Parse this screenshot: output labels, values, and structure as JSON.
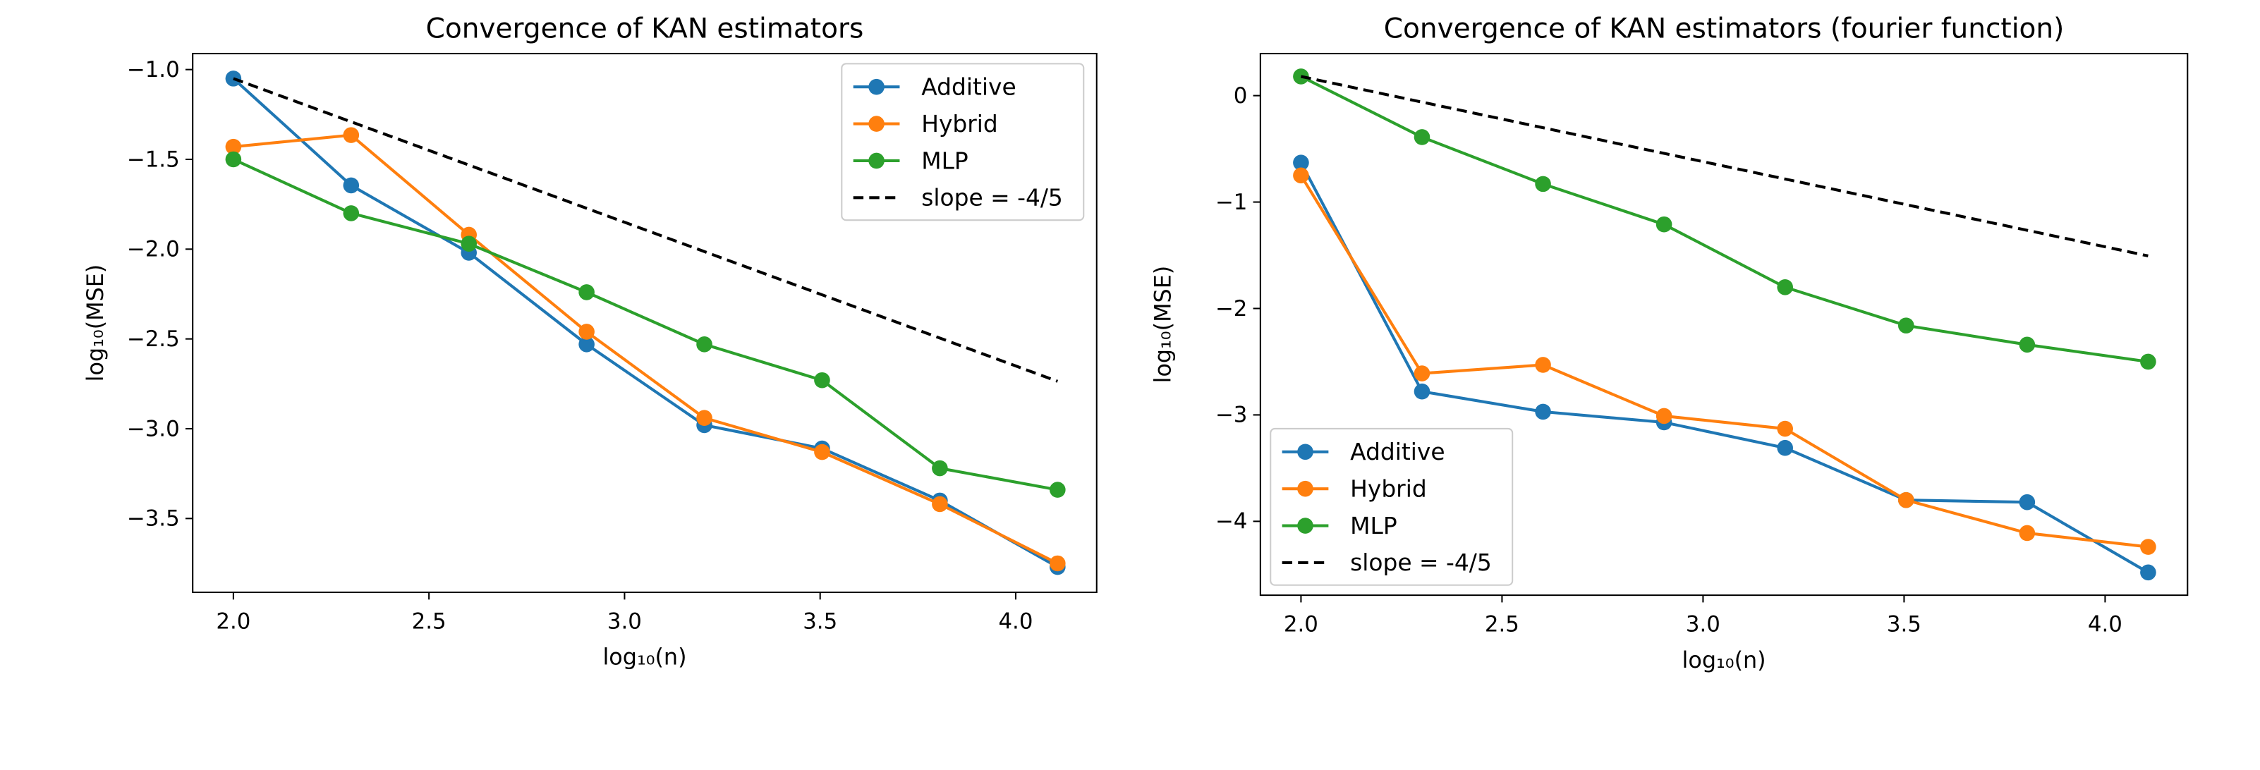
{
  "chart_data": [
    {
      "type": "line",
      "title": "Convergence of KAN estimators",
      "x_label": "log₁₀(n)",
      "y_label": "log₁₀(MSE)",
      "x": [
        2.0,
        2.301,
        2.602,
        2.903,
        3.204,
        3.505,
        3.806,
        4.107
      ],
      "series": [
        {
          "name": "Additive",
          "color": "#1f77b4",
          "values": [
            -1.05,
            -1.645,
            -2.02,
            -2.53,
            -2.98,
            -3.11,
            -3.4,
            -3.77
          ]
        },
        {
          "name": "Hybrid",
          "color": "#ff7f0e",
          "values": [
            -1.43,
            -1.365,
            -1.92,
            -2.46,
            -2.94,
            -3.13,
            -3.42,
            -3.75
          ]
        },
        {
          "name": "MLP",
          "color": "#2ca02c",
          "values": [
            -1.5,
            -1.8,
            -1.97,
            -2.24,
            -2.53,
            -2.73,
            -3.22,
            -3.34
          ]
        },
        {
          "name": "slope = -4/5",
          "color": "#000000",
          "dashed": true,
          "x": [
            2.0,
            4.107
          ],
          "values": [
            -1.05,
            -2.736
          ]
        }
      ],
      "xlim": [
        1.896,
        4.207
      ],
      "xticks": [
        {
          "value": 2,
          "label": "2.0"
        },
        {
          "value": 2.5,
          "label": "2.5"
        },
        {
          "value": 3,
          "label": "3.0"
        },
        {
          "value": 3.5,
          "label": "3.5"
        },
        {
          "value": 4,
          "label": "4.0"
        }
      ],
      "ylim": [
        -3.911,
        -0.911
      ],
      "yticks": [
        {
          "value": -3.5,
          "label": "−3.5"
        },
        {
          "value": -3,
          "label": "−3.0"
        },
        {
          "value": -2.5,
          "label": "−2.5"
        },
        {
          "value": -2,
          "label": "−2.0"
        },
        {
          "value": -1.5,
          "label": "−1.5"
        },
        {
          "value": -1,
          "label": "−1.0"
        }
      ],
      "legend": "upper right",
      "grid": false
    },
    {
      "type": "line",
      "title": "Convergence of KAN estimators (fourier function)",
      "x_label": "log₁₀(n)",
      "y_label": "log₁₀(MSE)",
      "x": [
        2.0,
        2.301,
        2.602,
        2.903,
        3.204,
        3.505,
        3.806,
        4.107
      ],
      "series": [
        {
          "name": "Additive",
          "color": "#1f77b4",
          "values": [
            -0.63,
            -2.78,
            -2.97,
            -3.07,
            -3.31,
            -3.8,
            -3.82,
            -4.48
          ]
        },
        {
          "name": "Hybrid",
          "color": "#ff7f0e",
          "values": [
            -0.75,
            -2.61,
            -2.53,
            -3.01,
            -3.13,
            -3.8,
            -4.11,
            -4.24
          ]
        },
        {
          "name": "MLP",
          "color": "#2ca02c",
          "values": [
            0.18,
            -0.39,
            -0.83,
            -1.21,
            -1.8,
            -2.16,
            -2.34,
            -2.5
          ]
        },
        {
          "name": "slope = -4/5",
          "color": "#000000",
          "dashed": true,
          "x": [
            2.0,
            4.107
          ],
          "values": [
            0.18,
            -1.506
          ]
        }
      ],
      "xlim": [
        1.899,
        4.205
      ],
      "xticks": [
        {
          "value": 2,
          "label": "2.0"
        },
        {
          "value": 2.5,
          "label": "2.5"
        },
        {
          "value": 3,
          "label": "3.0"
        },
        {
          "value": 3.5,
          "label": "3.5"
        },
        {
          "value": 4,
          "label": "4.0"
        }
      ],
      "ylim": [
        -4.694,
        0.395
      ],
      "yticks": [
        {
          "value": -4,
          "label": "−4"
        },
        {
          "value": -3,
          "label": "−3"
        },
        {
          "value": -2,
          "label": "−2"
        },
        {
          "value": -1,
          "label": "−1"
        },
        0
      ],
      "legend": "lower left",
      "grid": false
    }
  ]
}
